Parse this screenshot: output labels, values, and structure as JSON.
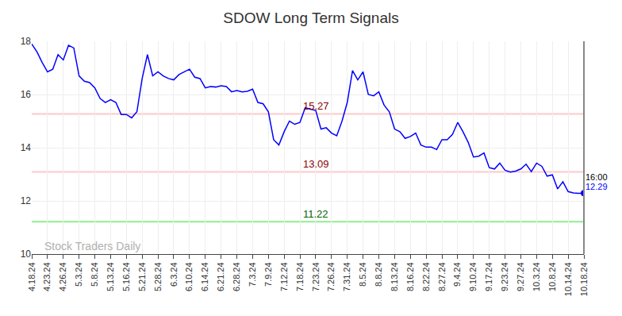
{
  "chart_data": {
    "type": "line",
    "title": "SDOW Long Term Signals",
    "categories": [
      "4.18.24",
      null,
      null,
      "4.23.24",
      null,
      null,
      "4.26.24",
      null,
      null,
      "5.3.24",
      null,
      null,
      "5.8.24",
      null,
      null,
      "5.13.24",
      null,
      null,
      "5.16.24",
      null,
      null,
      "5.21.24",
      null,
      null,
      "5.28.24",
      null,
      null,
      "6.3.24",
      null,
      null,
      "6.10.24",
      null,
      null,
      "6.14.24",
      null,
      null,
      "6.21.24",
      null,
      null,
      "6.28.24",
      null,
      null,
      "7.3.24",
      null,
      null,
      "7.9.24",
      null,
      null,
      "7.12.24",
      null,
      null,
      "7.18.24",
      null,
      null,
      "7.23.24",
      null,
      null,
      "7.26.24",
      null,
      null,
      "7.31.24",
      null,
      null,
      "8.5.24",
      null,
      null,
      "8.8.24",
      null,
      null,
      "8.13.24",
      null,
      null,
      "8.16.24",
      null,
      null,
      "8.22.24",
      null,
      null,
      "8.27.24",
      null,
      null,
      "9.4.24",
      null,
      null,
      "9.10.24",
      null,
      null,
      "9.17.24",
      null,
      null,
      "9.23.24",
      null,
      null,
      "9.27.24",
      null,
      null,
      "10.3.24",
      null,
      null,
      "10.8.24",
      null,
      null,
      "10.14.24",
      null,
      null,
      "10.18.24"
    ],
    "values": [
      17.9,
      17.6,
      17.2,
      16.85,
      16.95,
      17.5,
      17.3,
      17.85,
      17.75,
      16.7,
      16.5,
      16.45,
      16.25,
      15.85,
      15.7,
      15.8,
      15.7,
      15.25,
      15.25,
      15.12,
      15.35,
      16.6,
      17.5,
      16.7,
      16.85,
      16.7,
      16.6,
      16.55,
      16.75,
      16.85,
      16.95,
      16.65,
      16.6,
      16.25,
      16.3,
      16.28,
      16.33,
      16.3,
      16.1,
      16.15,
      16.1,
      16.12,
      16.2,
      15.7,
      15.65,
      15.35,
      14.3,
      14.1,
      14.6,
      15.0,
      14.88,
      14.95,
      15.5,
      15.45,
      15.4,
      14.7,
      14.75,
      14.55,
      14.45,
      15.0,
      15.7,
      16.9,
      16.55,
      16.85,
      16.0,
      15.95,
      16.1,
      15.6,
      15.35,
      14.7,
      14.6,
      14.35,
      14.42,
      14.55,
      14.1,
      14.02,
      14.02,
      13.93,
      14.3,
      14.3,
      14.5,
      14.95,
      14.6,
      14.2,
      13.65,
      13.68,
      13.8,
      13.25,
      13.2,
      13.42,
      13.15,
      13.08,
      13.12,
      13.2,
      13.38,
      13.1,
      13.42,
      13.3,
      12.93,
      12.98,
      12.45,
      12.72,
      12.35,
      12.3,
      12.28,
      12.29
    ],
    "color": "#0000ff",
    "marker": "last",
    "ylim": [
      10,
      18
    ],
    "yticks": [
      10,
      12,
      14,
      16,
      18
    ],
    "grid": true,
    "hlines": [
      {
        "value": 15.27,
        "label": "15.27",
        "color": "#ffc8c8",
        "label_color": "#8b0000"
      },
      {
        "value": 13.09,
        "label": "13.09",
        "color": "#ffc8c8",
        "label_color": "#8b0000"
      },
      {
        "value": 11.22,
        "label": "11.22",
        "color": "#90ee90",
        "label_color": "#006400"
      }
    ],
    "end_label": {
      "time": "16:00",
      "value": 12.29
    },
    "watermark": "Stock Traders Daily"
  }
}
